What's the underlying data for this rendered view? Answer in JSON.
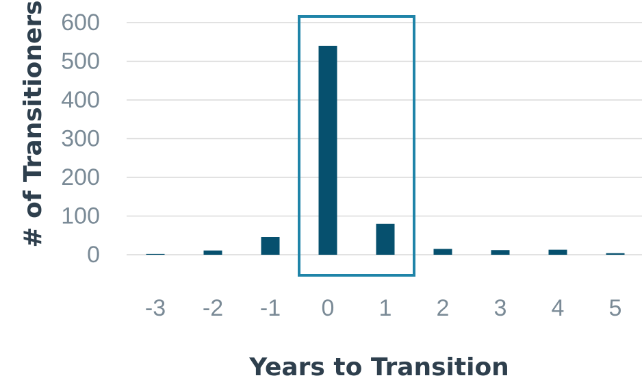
{
  "chart_data": {
    "type": "bar",
    "categories": [
      "-3",
      "-2",
      "-1",
      "0",
      "1",
      "2",
      "3",
      "4",
      "5"
    ],
    "values": [
      2,
      11,
      46,
      540,
      80,
      15,
      12,
      13,
      4
    ],
    "title": "",
    "xlabel": "Years to Transition",
    "ylabel": "# of Transitioners",
    "ylim": [
      0,
      600
    ],
    "yticks": [
      "0",
      "100",
      "200",
      "300",
      "400",
      "500",
      "600"
    ],
    "grid": true,
    "highlight_categories": [
      "0",
      "1"
    ],
    "colors": {
      "bar": "#06506e",
      "highlight_box": "#1f84a8",
      "grid": "#d9d9d9",
      "tick_text": "#7a8a96",
      "axis_title": "#2e3f4d"
    }
  }
}
